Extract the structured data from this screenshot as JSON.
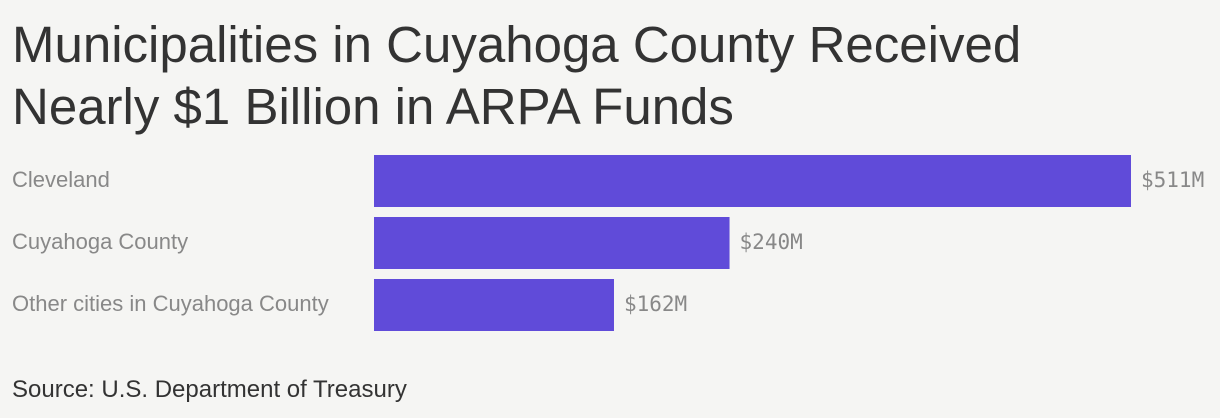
{
  "chart_data": {
    "type": "hbar",
    "title": "Municipalities in Cuyahoga County Received Nearly $1 Billion in ARPA Funds",
    "categories": [
      "Cleveland",
      "Cuyahoga County",
      "Other cities in Cuyahoga County"
    ],
    "values": [
      511,
      240,
      162
    ],
    "value_labels": [
      "$511M",
      "$240M",
      "$162M"
    ],
    "color": "#604bd9",
    "source": "Source: U.S. Department of Treasury"
  }
}
